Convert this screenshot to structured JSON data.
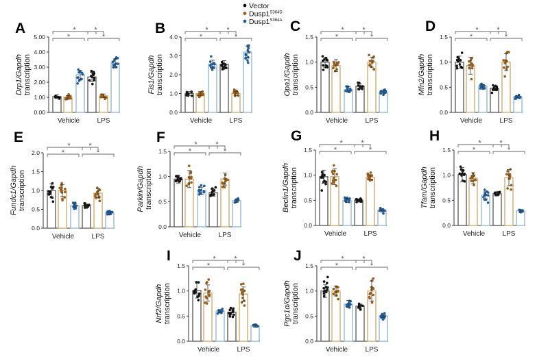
{
  "legend": [
    {
      "name": "Vector",
      "sup": "",
      "color": "#111111"
    },
    {
      "name": "Dusp1",
      "sup": "S364D",
      "color": "#9a5d17"
    },
    {
      "name": "Dusp1",
      "sup": "S364A",
      "color": "#1d5e9e"
    }
  ],
  "colors": {
    "bar_outline": [
      "#555555",
      "#d3a463",
      "#8db3d8"
    ],
    "bracket": "#666666"
  },
  "chart_data": [
    {
      "panel": "A",
      "type": "bar",
      "gene": "Drp1",
      "ylabel_suffix": "/Gapdh",
      "ylabel2": "transcription",
      "ylim": [
        0,
        5
      ],
      "yticks": [
        "0.00",
        "1.00",
        "2.00",
        "3.00",
        "4.00",
        "5.00"
      ],
      "categories": [
        "Vehicle",
        "LPS"
      ],
      "series": [
        {
          "name": "Vector",
          "values": [
            1.05,
            2.35
          ],
          "sd": [
            0.12,
            0.3
          ]
        },
        {
          "name": "Dusp1 S364D",
          "values": [
            1.0,
            1.1
          ],
          "sd": [
            0.12,
            0.12
          ]
        },
        {
          "name": "Dusp1 S364A",
          "values": [
            2.5,
            3.25
          ],
          "sd": [
            0.3,
            0.3
          ]
        }
      ],
      "significance": [
        "*",
        "*",
        "*",
        "*"
      ]
    },
    {
      "panel": "B",
      "type": "bar",
      "gene": "Fis1",
      "ylabel_suffix": "/Gapdh",
      "ylabel2": "transcription",
      "ylim": [
        0,
        4
      ],
      "yticks": [
        "0.0",
        "1.0",
        "2.0",
        "3.0",
        "4.0"
      ],
      "categories": [
        "Vehicle",
        "LPS"
      ],
      "series": [
        {
          "name": "Vector",
          "values": [
            1.0,
            2.55
          ],
          "sd": [
            0.1,
            0.2
          ]
        },
        {
          "name": "Dusp1 S364D",
          "values": [
            1.0,
            1.0
          ],
          "sd": [
            0.1,
            0.12
          ]
        },
        {
          "name": "Dusp1 S364A",
          "values": [
            2.55,
            3.2
          ],
          "sd": [
            0.22,
            0.3
          ]
        }
      ],
      "significance": [
        "*",
        "*",
        "*",
        "*"
      ]
    },
    {
      "panel": "C",
      "type": "bar",
      "gene": "Opa1",
      "ylabel_suffix": "/Gapdh",
      "ylabel2": "transcription",
      "ylim": [
        0,
        1.5
      ],
      "yticks": [
        "0.0",
        "0.5",
        "1.0",
        "1.5"
      ],
      "categories": [
        "Vehicle",
        "LPS"
      ],
      "series": [
        {
          "name": "Vector",
          "values": [
            1.0,
            0.52
          ],
          "sd": [
            0.1,
            0.05
          ]
        },
        {
          "name": "Dusp1 S364D",
          "values": [
            0.93,
            1.0
          ],
          "sd": [
            0.12,
            0.1
          ]
        },
        {
          "name": "Dusp1 S364A",
          "values": [
            0.45,
            0.4
          ],
          "sd": [
            0.06,
            0.03
          ]
        }
      ],
      "significance": [
        "*",
        "*",
        "*",
        "*"
      ]
    },
    {
      "panel": "D",
      "type": "bar",
      "gene": "Mfn2",
      "ylabel_suffix": "/Gapdh",
      "ylabel2": "transcription",
      "ylim": [
        0,
        1.5
      ],
      "yticks": [
        "0.0",
        "0.5",
        "1.0",
        "1.5"
      ],
      "categories": [
        "Vehicle",
        "LPS"
      ],
      "series": [
        {
          "name": "Vector",
          "values": [
            1.0,
            0.48
          ],
          "sd": [
            0.12,
            0.05
          ]
        },
        {
          "name": "Dusp1 S364D",
          "values": [
            0.93,
            1.0
          ],
          "sd": [
            0.17,
            0.17
          ]
        },
        {
          "name": "Dusp1 S364A",
          "values": [
            0.52,
            0.31
          ],
          "sd": [
            0.03,
            0.02
          ]
        }
      ],
      "significance": [
        "*",
        "*",
        "*",
        "*"
      ]
    },
    {
      "panel": "E",
      "type": "bar",
      "gene": "Fundc1",
      "ylabel_suffix": "/Gapdh",
      "ylabel2": "transcription",
      "ylim": [
        0,
        2
      ],
      "yticks": [
        "0.0",
        "0.5",
        "1.0",
        "1.5",
        "2.0"
      ],
      "categories": [
        "Vehicle",
        "LPS"
      ],
      "series": [
        {
          "name": "Vector",
          "values": [
            1.0,
            0.6
          ],
          "sd": [
            0.18,
            0.04
          ]
        },
        {
          "name": "Dusp1 S364D",
          "values": [
            1.0,
            0.93
          ],
          "sd": [
            0.16,
            0.12
          ]
        },
        {
          "name": "Dusp1 S364A",
          "values": [
            0.6,
            0.4
          ],
          "sd": [
            0.05,
            0.04
          ]
        }
      ],
      "significance": [
        "*",
        "*",
        "*",
        "*"
      ]
    },
    {
      "panel": "F",
      "type": "bar",
      "gene": "Parkin",
      "ylabel_suffix": "/Gapdh",
      "ylabel2": "transcription",
      "ylim": [
        0,
        1.5
      ],
      "yticks": [
        "0.0",
        "0.5",
        "1.0",
        "1.5"
      ],
      "categories": [
        "Vehicle",
        "LPS"
      ],
      "series": [
        {
          "name": "Vector",
          "values": [
            0.95,
            0.68
          ],
          "sd": [
            0.08,
            0.07
          ]
        },
        {
          "name": "Dusp1 S364D",
          "values": [
            0.95,
            0.95
          ],
          "sd": [
            0.17,
            0.12
          ]
        },
        {
          "name": "Dusp1 S364A",
          "values": [
            0.72,
            0.52
          ],
          "sd": [
            0.07,
            0.03
          ]
        }
      ],
      "significance": [
        "*",
        "*",
        "*",
        "*"
      ]
    },
    {
      "panel": "G",
      "type": "bar",
      "gene": "Beclin1",
      "ylabel_suffix": "/Gapdh",
      "ylabel2": "transcription",
      "ylim": [
        0,
        1.5
      ],
      "yticks": [
        "0.0",
        "0.5",
        "1.0",
        "1.5"
      ],
      "categories": [
        "Vehicle",
        "LPS"
      ],
      "series": [
        {
          "name": "Vector",
          "values": [
            0.97,
            0.5
          ],
          "sd": [
            0.13,
            0.03
          ]
        },
        {
          "name": "Dusp1 S364D",
          "values": [
            0.97,
            0.96
          ],
          "sd": [
            0.16,
            0.05
          ]
        },
        {
          "name": "Dusp1 S364A",
          "values": [
            0.5,
            0.3
          ],
          "sd": [
            0.04,
            0.03
          ]
        }
      ],
      "significance": [
        "*",
        "*",
        "*",
        "*"
      ]
    },
    {
      "panel": "H",
      "type": "bar",
      "gene": "Tfam",
      "ylabel_suffix": "/Gapdh",
      "ylabel2": "transcription",
      "ylim": [
        0,
        1.5
      ],
      "yticks": [
        "0.0",
        "0.5",
        "1.0",
        "1.5"
      ],
      "categories": [
        "Vehicle",
        "LPS"
      ],
      "series": [
        {
          "name": "Vector",
          "values": [
            1.01,
            0.63
          ],
          "sd": [
            0.14,
            0.04
          ]
        },
        {
          "name": "Dusp1 S364D",
          "values": [
            0.94,
            0.95
          ],
          "sd": [
            0.11,
            0.16
          ]
        },
        {
          "name": "Dusp1 S364A",
          "values": [
            0.6,
            0.29
          ],
          "sd": [
            0.07,
            0.02
          ]
        }
      ],
      "significance": [
        "*",
        "*",
        "*",
        "*"
      ]
    },
    {
      "panel": "I",
      "type": "bar",
      "gene": "Nrf2",
      "ylabel_suffix": "/Gapdh",
      "ylabel2": "transcription",
      "ylim": [
        0,
        1.5
      ],
      "yticks": [
        "0.0",
        "0.5",
        "1.0",
        "1.5"
      ],
      "categories": [
        "Vehicle",
        "LPS"
      ],
      "series": [
        {
          "name": "Vector",
          "values": [
            1.01,
            0.58
          ],
          "sd": [
            0.15,
            0.06
          ]
        },
        {
          "name": "Dusp1 S364D",
          "values": [
            0.96,
            0.94
          ],
          "sd": [
            0.16,
            0.14
          ]
        },
        {
          "name": "Dusp1 S364A",
          "values": [
            0.6,
            0.31
          ],
          "sd": [
            0.03,
            0.03
          ]
        }
      ],
      "significance": [
        "*",
        "*",
        "*",
        "*"
      ]
    },
    {
      "panel": "J",
      "type": "bar",
      "gene": "Pgc1α",
      "ylabel_suffix": "/Gapdh",
      "ylabel2": "transcription",
      "ylim": [
        0,
        1.5
      ],
      "yticks": [
        "0.0",
        "0.5",
        "1.0",
        "1.5"
      ],
      "categories": [
        "Vehicle",
        "LPS"
      ],
      "series": [
        {
          "name": "Vector",
          "values": [
            1.0,
            0.7
          ],
          "sd": [
            0.13,
            0.04
          ]
        },
        {
          "name": "Dusp1 S364D",
          "values": [
            1.0,
            1.0
          ],
          "sd": [
            0.1,
            0.2
          ]
        },
        {
          "name": "Dusp1 S364A",
          "values": [
            0.74,
            0.5
          ],
          "sd": [
            0.07,
            0.03
          ]
        }
      ],
      "significance": [
        "*",
        "*",
        "*",
        "*"
      ]
    }
  ]
}
